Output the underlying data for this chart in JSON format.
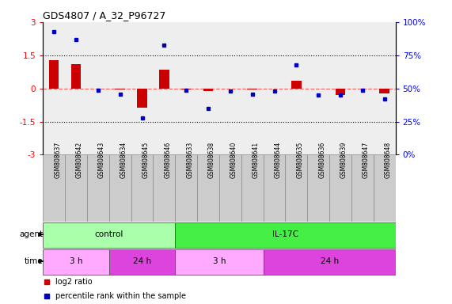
{
  "title": "GDS4807 / A_32_P96727",
  "samples": [
    "GSM808637",
    "GSM808642",
    "GSM808643",
    "GSM808634",
    "GSM808645",
    "GSM808646",
    "GSM808633",
    "GSM808638",
    "GSM808640",
    "GSM808641",
    "GSM808644",
    "GSM808635",
    "GSM808636",
    "GSM808639",
    "GSM808647",
    "GSM808648"
  ],
  "log2_ratio": [
    1.3,
    1.1,
    0.0,
    -0.05,
    -0.85,
    0.85,
    -0.05,
    -0.12,
    0.0,
    -0.05,
    0.0,
    0.35,
    0.0,
    -0.3,
    0.0,
    -0.2
  ],
  "percentile": [
    93,
    87,
    49,
    46,
    28,
    83,
    49,
    35,
    48,
    46,
    48,
    68,
    45,
    45,
    49,
    42
  ],
  "ylim": [
    -3,
    3
  ],
  "yticks_left": [
    -3,
    -1.5,
    0,
    1.5,
    3
  ],
  "yticks_right_pct": [
    0,
    25,
    50,
    75,
    100
  ],
  "hlines": [
    1.5,
    -1.5
  ],
  "agent_groups": [
    {
      "label": "control",
      "start": 0,
      "end": 6,
      "color": "#aaffaa"
    },
    {
      "label": "IL-17C",
      "start": 6,
      "end": 16,
      "color": "#44ee44"
    }
  ],
  "time_groups": [
    {
      "label": "3 h",
      "start": 0,
      "end": 3,
      "color": "#ffaaff"
    },
    {
      "label": "24 h",
      "start": 3,
      "end": 6,
      "color": "#dd44dd"
    },
    {
      "label": "3 h",
      "start": 6,
      "end": 10,
      "color": "#ffaaff"
    },
    {
      "label": "24 h",
      "start": 10,
      "end": 16,
      "color": "#dd44dd"
    }
  ],
  "bar_color": "#cc0000",
  "dot_color": "#0000bb",
  "zero_line_color": "#ff6666",
  "hline_color": "#111111",
  "plot_bg": "#eeeeee",
  "sample_bg": "#cccccc",
  "legend_items": [
    {
      "color": "#cc0000",
      "label": "log2 ratio"
    },
    {
      "color": "#0000bb",
      "label": "percentile rank within the sample"
    }
  ]
}
